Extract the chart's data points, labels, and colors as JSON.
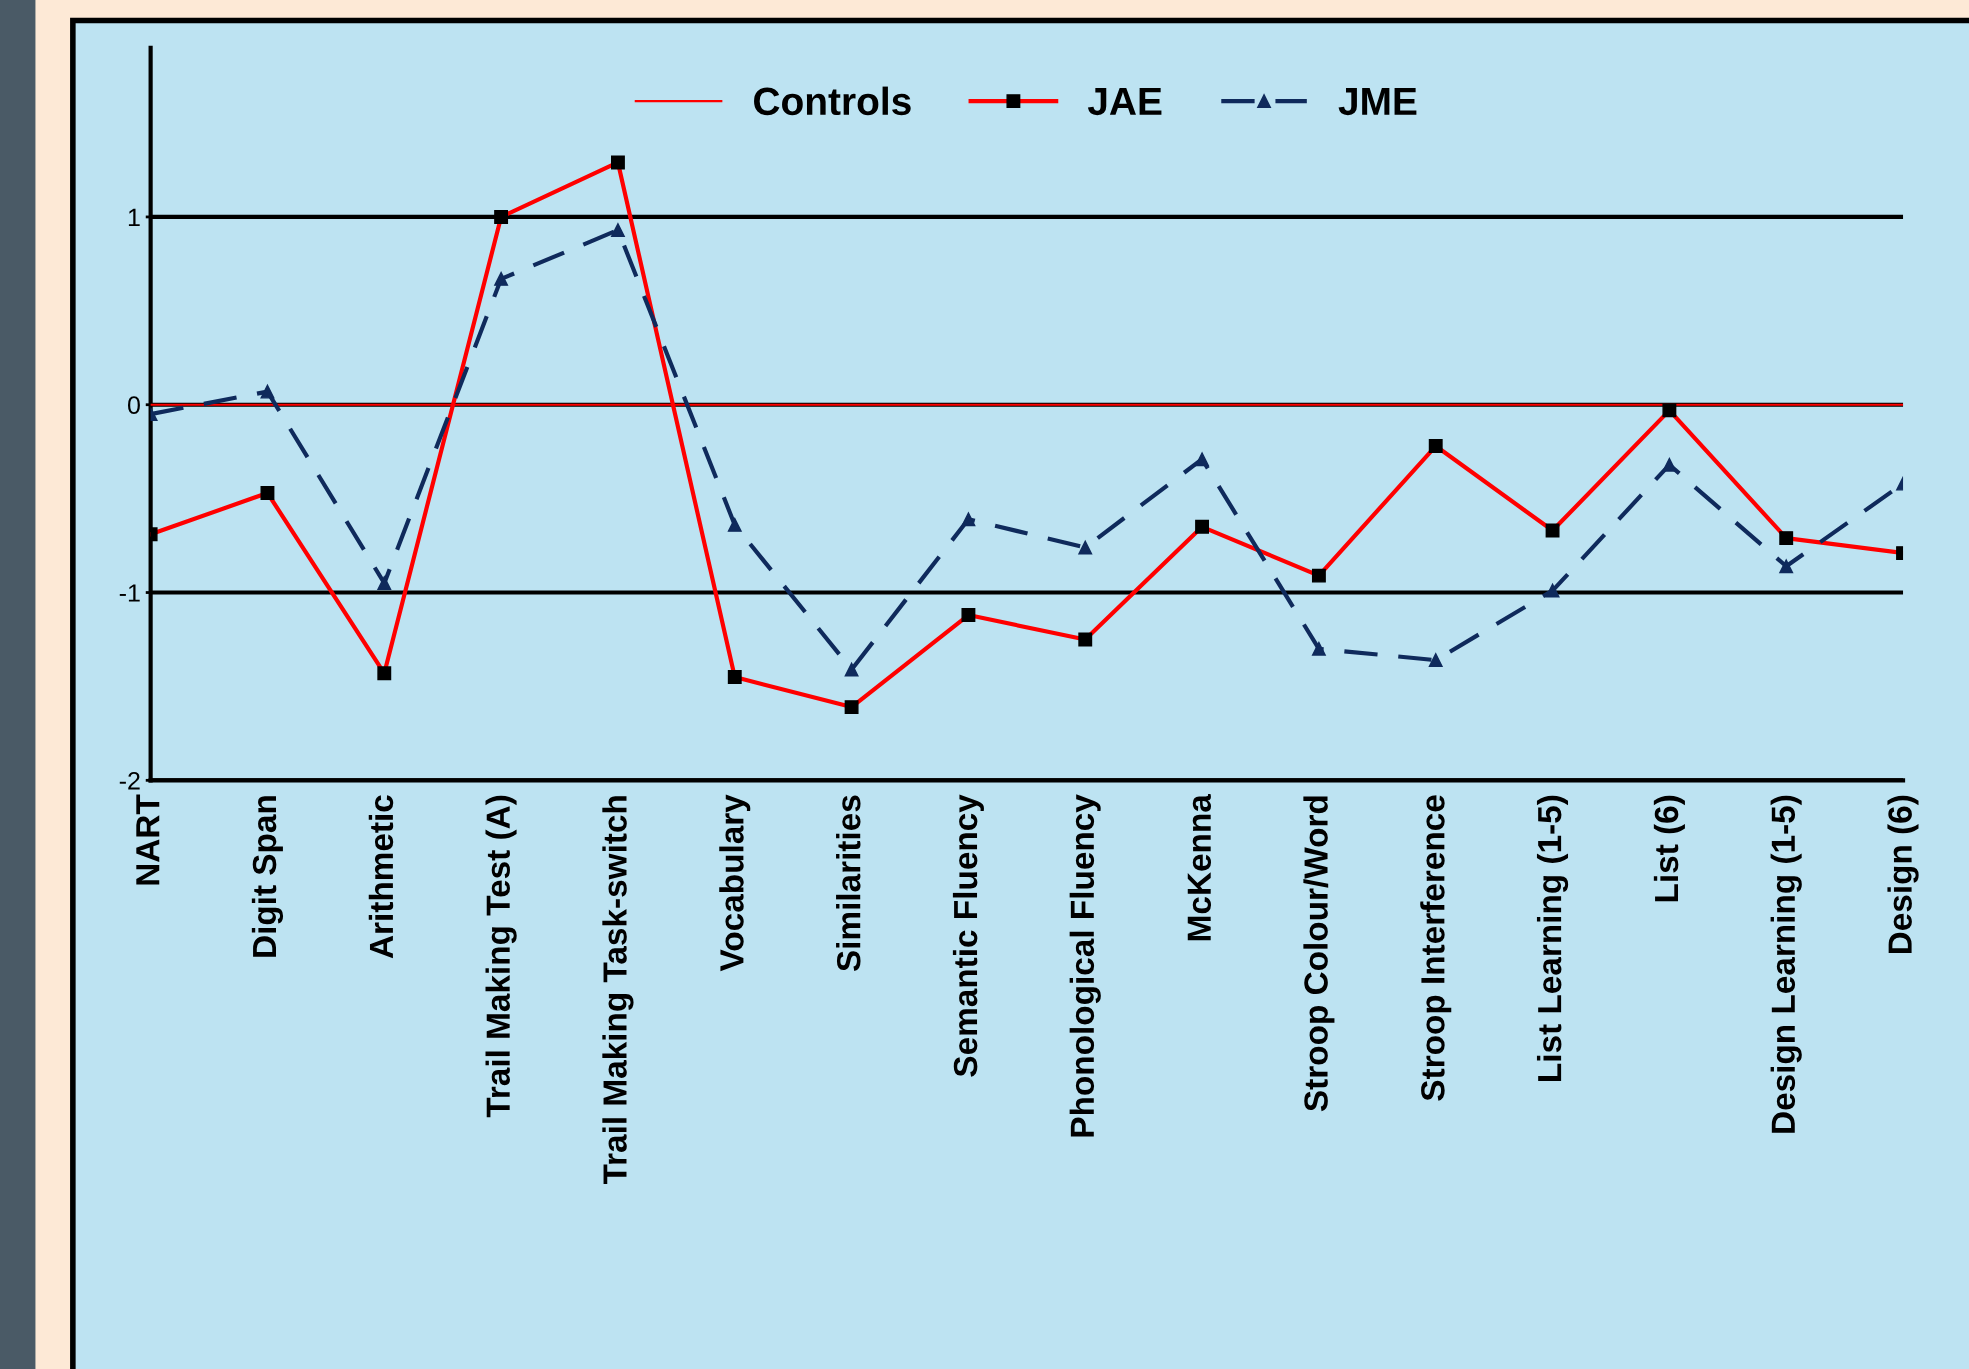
{
  "chart_data": {
    "type": "line",
    "categories": [
      "NART",
      "Digit Span",
      "Arithmetic",
      "Trail Making Test (A)",
      "Trail Making Task-switch",
      "Vocabulary",
      "Similarities",
      "Semantic Fluency",
      "Phonological Fluency",
      "McKenna",
      "Stroop Colour/Word",
      "Stroop Interference",
      "List Learning (1-5)",
      "List (6)",
      "Design Learning (1-5)",
      "Design (6)"
    ],
    "series": [
      {
        "name": "Controls",
        "color": "#ff0000",
        "marker": "none",
        "line_style": "solid",
        "values": [
          0,
          0,
          0,
          0,
          0,
          0,
          0,
          0,
          0,
          0,
          0,
          0,
          0,
          0,
          0,
          0
        ]
      },
      {
        "name": "JAE",
        "color": "#ff0000",
        "marker": "square",
        "line_style": "solid",
        "values": [
          -0.69,
          -0.47,
          -1.43,
          1.0,
          1.29,
          -1.45,
          -1.61,
          -1.12,
          -1.25,
          -0.65,
          -0.91,
          -0.22,
          -0.67,
          -0.03,
          -0.71,
          -0.79
        ]
      },
      {
        "name": "JME",
        "color": "#0f2a5c",
        "marker": "triangle",
        "line_style": "dashed",
        "values": [
          -0.05,
          0.07,
          -0.95,
          0.67,
          0.93,
          -0.64,
          -1.41,
          -0.61,
          -0.76,
          -0.29,
          -1.3,
          -1.36,
          -0.99,
          -0.32,
          -0.86,
          -0.42
        ]
      }
    ],
    "ylim": [
      -2,
      1.9
    ],
    "yticks": [
      -2,
      -1,
      0,
      1
    ],
    "grid": "y",
    "legend": "top"
  }
}
